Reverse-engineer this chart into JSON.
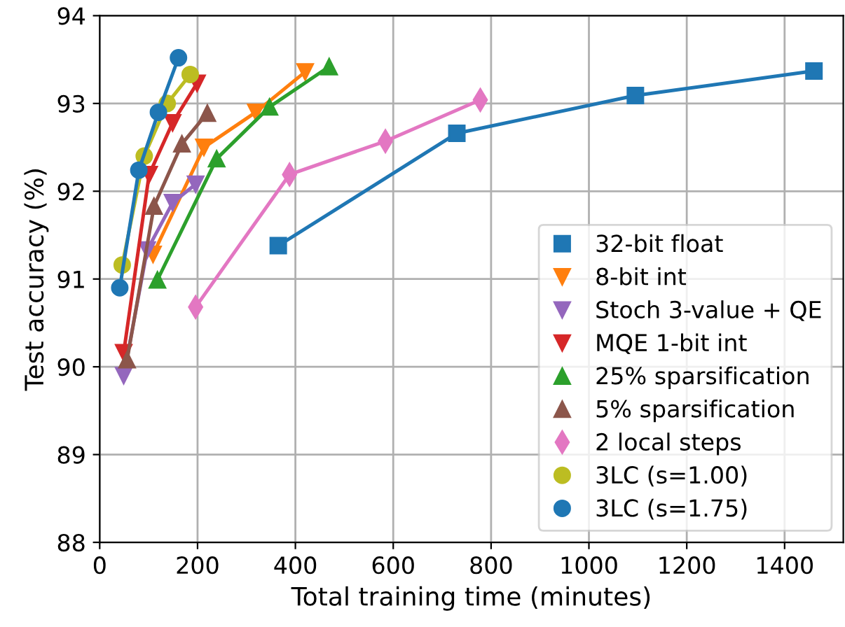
{
  "chart_data": {
    "type": "line",
    "xlabel": "Total training time (minutes)",
    "ylabel": "Test accuracy (%)",
    "xlim": [
      0,
      1520
    ],
    "xticks": [
      0,
      200,
      400,
      600,
      800,
      1000,
      1200,
      1400
    ],
    "ylim": [
      88,
      94
    ],
    "yticks": [
      88,
      89,
      90,
      91,
      92,
      93,
      94
    ],
    "grid": true,
    "legend": "bottom right",
    "series": [
      {
        "name": "32-bit float",
        "color": "#1f77b4",
        "marker": "square",
        "x": [
          365,
          730,
          1095,
          1460
        ],
        "values": [
          91.38,
          92.66,
          93.09,
          93.37
        ]
      },
      {
        "name": "8-bit int",
        "color": "#ff7f0e",
        "marker": "triangle_down",
        "x": [
          109,
          213,
          319,
          420
        ],
        "values": [
          91.28,
          92.5,
          92.9,
          93.36
        ]
      },
      {
        "name": "Stoch 3-value + QE",
        "color": "#9467bd",
        "marker": "triangle_down",
        "x": [
          49,
          97,
          149,
          196
        ],
        "values": [
          89.9,
          91.33,
          91.87,
          92.08
        ]
      },
      {
        "name": "MQE 1-bit int",
        "color": "#d62728",
        "marker": "triangle_down",
        "x": [
          49,
          101,
          149,
          199
        ],
        "values": [
          90.16,
          92.19,
          92.78,
          93.23
        ]
      },
      {
        "name": "25% sparsification",
        "color": "#2ca02c",
        "marker": "triangle",
        "x": [
          118,
          239,
          347,
          469
        ],
        "values": [
          90.99,
          92.37,
          92.96,
          93.42
        ]
      },
      {
        "name": "5% sparsification",
        "color": "#8c564b",
        "marker": "triangle",
        "x": [
          56,
          111,
          168,
          220
        ],
        "values": [
          90.08,
          91.83,
          92.54,
          92.89
        ]
      },
      {
        "name": "2 local steps",
        "color": "#e377c2",
        "marker": "diamond",
        "x": [
          196,
          388,
          584,
          778
        ],
        "values": [
          90.68,
          92.19,
          92.57,
          93.04
        ]
      },
      {
        "name": "3LC (s=1.00)",
        "color": "#bcbd22",
        "marker": "circle",
        "x": [
          46,
          91,
          138,
          185
        ],
        "values": [
          91.16,
          92.4,
          93.0,
          93.33
        ]
      },
      {
        "name": "3LC (s=1.75)",
        "color": "#1f77b4",
        "marker": "circle",
        "x": [
          41,
          80,
          120,
          161
        ],
        "values": [
          90.9,
          92.24,
          92.9,
          93.52
        ]
      }
    ]
  }
}
